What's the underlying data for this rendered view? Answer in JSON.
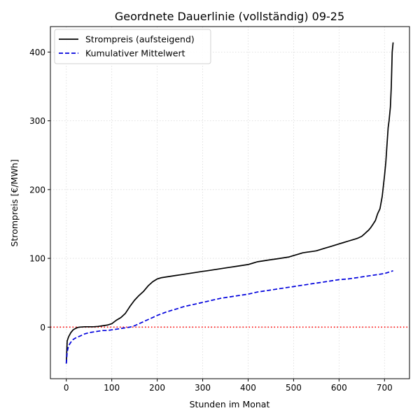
{
  "chart_data": {
    "type": "line",
    "title": "Geordnete Dauerlinie (vollständig) 09-25",
    "xlabel": "Stunden im Monat",
    "ylabel": "Strompreis [€/MWh]",
    "xlim": [
      -35,
      755
    ],
    "ylim": [
      -75,
      437
    ],
    "xticks": [
      0,
      100,
      200,
      300,
      400,
      500,
      600,
      700
    ],
    "yticks": [
      0,
      100,
      200,
      300,
      400
    ],
    "grid": true,
    "legend_position": "top-left",
    "reference_line": {
      "y": 0,
      "color": "#ff0000",
      "style": "dotted"
    },
    "series": [
      {
        "name": "Strompreis (aufsteigend)",
        "color": "#000000",
        "style": "solid",
        "x": [
          0,
          2,
          5,
          10,
          15,
          20,
          25,
          30,
          40,
          50,
          60,
          70,
          80,
          90,
          100,
          110,
          120,
          130,
          140,
          150,
          160,
          170,
          180,
          190,
          200,
          210,
          220,
          230,
          240,
          250,
          260,
          270,
          280,
          290,
          300,
          310,
          320,
          330,
          340,
          350,
          360,
          370,
          380,
          390,
          400,
          410,
          420,
          430,
          440,
          450,
          460,
          470,
          480,
          490,
          500,
          510,
          520,
          530,
          540,
          550,
          560,
          570,
          580,
          590,
          600,
          610,
          620,
          630,
          640,
          650,
          655,
          660,
          665,
          670,
          675,
          680,
          685,
          690,
          695,
          700,
          703,
          705,
          708,
          710,
          713,
          715,
          717,
          719
        ],
        "values": [
          -53,
          -20,
          -14,
          -8,
          -4,
          -2,
          -0.5,
          0,
          0.5,
          0.5,
          0.5,
          1,
          2,
          3,
          5,
          10,
          14,
          20,
          30,
          39,
          46,
          52,
          60,
          66,
          70,
          72,
          73,
          74,
          75,
          76,
          77,
          78,
          79,
          80,
          81,
          82,
          83,
          84,
          85,
          86,
          87,
          88,
          89,
          90,
          91,
          93,
          95,
          96,
          97,
          98,
          99,
          100,
          101,
          102,
          104,
          106,
          108,
          109,
          110,
          111,
          113,
          115,
          117,
          119,
          121,
          123,
          125,
          127,
          129,
          132,
          135,
          138,
          141,
          145,
          150,
          155,
          165,
          172,
          190,
          220,
          240,
          260,
          290,
          300,
          320,
          350,
          400,
          414
        ]
      },
      {
        "name": "Kumulativer Mittelwert",
        "color": "#0000dd",
        "style": "dashed",
        "x": [
          0,
          2,
          5,
          10,
          15,
          20,
          30,
          40,
          50,
          60,
          70,
          80,
          90,
          100,
          110,
          120,
          130,
          140,
          150,
          160,
          170,
          180,
          190,
          200,
          220,
          240,
          260,
          280,
          300,
          320,
          340,
          360,
          380,
          400,
          420,
          440,
          460,
          480,
          500,
          520,
          540,
          560,
          580,
          600,
          620,
          640,
          660,
          680,
          700,
          710,
          719
        ],
        "values": [
          -53,
          -36,
          -27,
          -22,
          -18,
          -16,
          -13,
          -10,
          -8,
          -7,
          -6,
          -5,
          -5,
          -4,
          -3,
          -2,
          -1,
          0,
          2,
          5,
          8,
          11,
          14,
          17,
          22,
          26,
          30,
          33,
          36,
          39,
          42,
          44,
          46,
          48,
          51,
          53,
          55,
          57,
          59,
          61,
          63,
          65,
          67,
          69,
          70,
          72,
          74,
          76,
          78,
          80,
          82
        ]
      }
    ]
  }
}
